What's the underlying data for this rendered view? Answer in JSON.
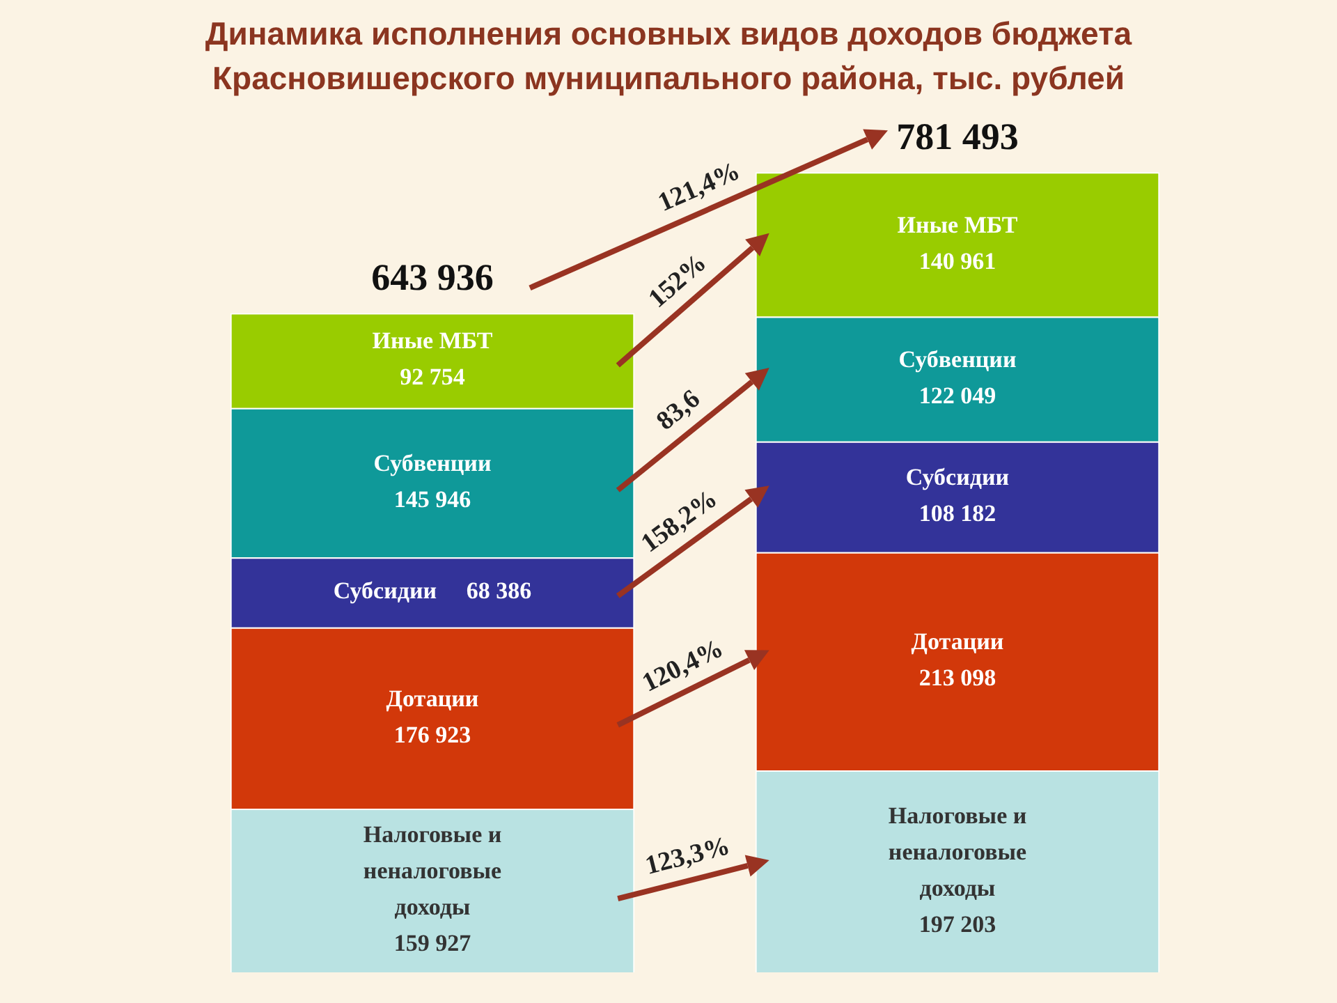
{
  "chart_data": {
    "type": "bar",
    "title": "Динамика исполнения основных видов доходов бюджета Красновишерского муниципального района, тыс. рублей",
    "categories": [
      null,
      null
    ],
    "stacked": true,
    "legend": false,
    "tick_labels": false,
    "series": [
      {
        "name": "Налоговые и неналоговые доходы",
        "color": "#b9e2e2",
        "values": [
          159927,
          197203
        ],
        "value_labels": [
          "159 927",
          "197 203"
        ]
      },
      {
        "name": "Дотации",
        "color": "#d2380a",
        "values": [
          176923,
          213098
        ],
        "value_labels": [
          "176 923",
          "213 098"
        ]
      },
      {
        "name": "Субсидии",
        "color": "#333399",
        "values": [
          68386,
          108182
        ],
        "value_labels": [
          "68 386",
          "108 182"
        ]
      },
      {
        "name": "Субвенции",
        "color": "#0f9999",
        "values": [
          145946,
          122049
        ],
        "value_labels": [
          "145 946",
          "122 049"
        ]
      },
      {
        "name": "Иные МБТ",
        "color": "#99cc00",
        "values": [
          92754,
          140961
        ],
        "value_labels": [
          "92 754",
          "140 961"
        ]
      }
    ],
    "totals": [
      "643 936",
      "781 493"
    ],
    "annotations": [
      "121,4%",
      "152%",
      "83,6",
      "158,2%",
      "120,4%",
      "123,3%"
    ]
  }
}
